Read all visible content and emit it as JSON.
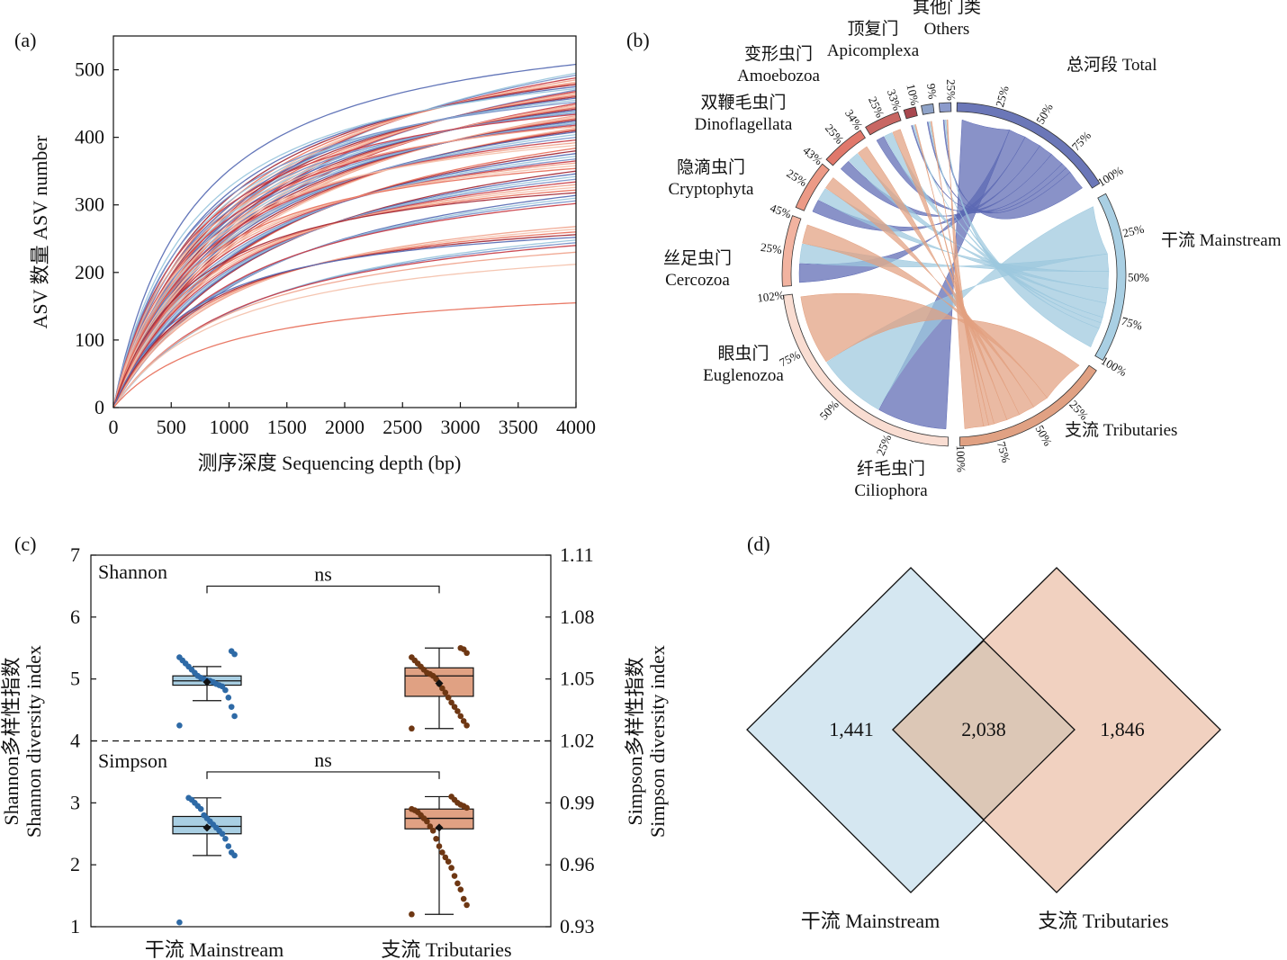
{
  "panel_labels": {
    "a": "(a)",
    "b": "(b)",
    "c": "(c)",
    "d": "(d)"
  },
  "chart_data": [
    {
      "id": "a",
      "type": "line",
      "xlabel": "测序深度 Sequencing depth (bp)",
      "ylabel": "ASV 数量 ASV number",
      "xlim": [
        0,
        4000
      ],
      "ylim": [
        0,
        550
      ],
      "xticks": [
        "0",
        "500",
        "1000",
        "1500",
        "2000",
        "2500",
        "3000",
        "3500",
        "4000"
      ],
      "yticks": [
        "0",
        "100",
        "200",
        "300",
        "400",
        "500"
      ],
      "curve_model": "y = A*x/(x+B)",
      "curve_final_values": [
        508,
        495,
        492,
        488,
        485,
        482,
        480,
        478,
        475,
        472,
        470,
        468,
        466,
        464,
        462,
        460,
        458,
        455,
        452,
        450,
        448,
        446,
        444,
        442,
        440,
        438,
        436,
        434,
        432,
        430,
        428,
        426,
        424,
        422,
        420,
        418,
        416,
        414,
        412,
        410,
        408,
        404,
        400,
        396,
        392,
        388,
        384,
        380,
        376,
        372,
        368,
        365,
        362,
        358,
        354,
        350,
        346,
        342,
        338,
        334,
        330,
        326,
        322,
        318,
        314,
        310,
        306,
        302,
        268,
        264,
        260,
        256,
        252,
        248,
        244,
        240,
        230,
        212,
        155
      ],
      "colors": [
        "#5b6fb5",
        "#c9404a",
        "#e8735f",
        "#9cc7dd",
        "#f0a58f",
        "#a52d3a",
        "#7b93c9",
        "#f4c3ae"
      ],
      "grid": false
    },
    {
      "id": "b",
      "type": "chord",
      "groups": [
        {
          "name_zh": "总河段",
          "name_en": "Total",
          "label": "总河段 Total",
          "color": "#6b77b8",
          "ticks": [
            "25%",
            "50%",
            "75%",
            "100%"
          ]
        },
        {
          "name_zh": "干流",
          "name_en": "Mainstream",
          "label": "干流 Mainstream",
          "color": "#a9cfe3",
          "ticks": [
            "25%",
            "50%",
            "75%",
            "100%"
          ]
        },
        {
          "name_zh": "支流",
          "name_en": "Tributaries",
          "label": "支流 Tributaries",
          "color": "#e0a183",
          "ticks": [
            "25%",
            "50%",
            "75%",
            "100%"
          ]
        },
        {
          "name_zh": "纤毛虫门",
          "name_en": "Ciliophora",
          "color": "#f9ddd2",
          "ticks": [
            "25%",
            "50%",
            "75%",
            "102%"
          ]
        },
        {
          "name_zh": "眼虫门",
          "name_en": "Euglenozoa",
          "color": "#f2b3a0",
          "ticks": [
            "25%",
            "45%"
          ]
        },
        {
          "name_zh": "丝足虫门",
          "name_en": "Cercozoa",
          "color": "#ec9a86",
          "ticks": [
            "25%",
            "43%"
          ]
        },
        {
          "name_zh": "隐滴虫门",
          "name_en": "Cryptophyta",
          "color": "#e0786b",
          "ticks": [
            "25%",
            "34%"
          ]
        },
        {
          "name_zh": "双鞭毛虫门",
          "name_en": "Dinoflagellata",
          "color": "#c86763",
          "ticks": [
            "25%",
            "33%"
          ]
        },
        {
          "name_zh": "变形虫门",
          "name_en": "Amoebozoa",
          "color": "#a8484f",
          "ticks": [
            "10%"
          ]
        },
        {
          "name_zh": "顶复门",
          "name_en": "Apicomplexa",
          "color": "#8fa3c8",
          "ticks": [
            "9%"
          ]
        },
        {
          "name_zh": "其他门类",
          "name_en": "Others",
          "color": "#8c9bcc",
          "ticks": [
            "25%"
          ]
        }
      ]
    },
    {
      "id": "c",
      "type": "box",
      "categories": [
        "干流 Mainstream",
        "支流 Tributaries"
      ],
      "ylabel_left": [
        "Shannon多样性指数",
        "Shannon diversity index"
      ],
      "ylabel_right": [
        "Simpson多样性指数",
        "Simpson diversity index"
      ],
      "ylim_left": [
        1,
        7
      ],
      "ylim_right": [
        0.93,
        1.11
      ],
      "yticks_left": [
        "1",
        "2",
        "3",
        "4",
        "5",
        "6",
        "7"
      ],
      "yticks_right": [
        "0.93",
        "0.96",
        "0.99",
        "1.02",
        "1.05",
        "1.08",
        "1.11"
      ],
      "divider_value_left": 4,
      "panels": [
        {
          "name": "Shannon",
          "significance": "ns",
          "boxes": [
            {
              "category": "干流 Mainstream",
              "color": "#a9cfe3",
              "dot_color": "#2e6aa6",
              "q1": 4.9,
              "median": 4.97,
              "q3": 5.05,
              "whisker_low": 4.65,
              "whisker_high": 5.2,
              "mean": 4.95,
              "points": [
                4.25,
                4.4,
                4.55,
                4.7,
                4.82,
                4.88,
                4.9,
                4.92,
                4.95,
                4.97,
                4.98,
                5.0,
                5.02,
                5.05,
                5.1,
                5.15,
                5.2,
                5.25,
                5.3,
                5.35,
                5.4,
                5.45
              ]
            },
            {
              "category": "支流 Tributaries",
              "color": "#e0a183",
              "dot_color": "#6e3713",
              "q1": 4.72,
              "median": 5.05,
              "q3": 5.18,
              "whisker_low": 4.2,
              "whisker_high": 5.5,
              "mean": 4.93,
              "points": [
                4.2,
                4.25,
                4.32,
                4.4,
                4.48,
                4.55,
                4.62,
                4.7,
                4.78,
                4.85,
                4.92,
                5.0,
                5.05,
                5.08,
                5.1,
                5.15,
                5.2,
                5.25,
                5.3,
                5.35,
                5.42,
                5.48,
                5.5
              ]
            }
          ]
        },
        {
          "name": "Simpson",
          "significance": "ns",
          "boxes": [
            {
              "category": "干流 Mainstream",
              "color": "#a9cfe3",
              "dot_color": "#2e6aa6",
              "q1": 2.5,
              "median": 2.62,
              "q3": 2.78,
              "whisker_low": 2.15,
              "whisker_high": 3.08,
              "mean": 2.6,
              "points": [
                1.07,
                2.15,
                2.2,
                2.3,
                2.42,
                2.5,
                2.55,
                2.6,
                2.65,
                2.7,
                2.75,
                2.8,
                2.9,
                2.95,
                3.0,
                3.05,
                3.08
              ]
            },
            {
              "category": "支流 Tributaries",
              "color": "#e0a183",
              "dot_color": "#6e3713",
              "q1": 2.58,
              "median": 2.75,
              "q3": 2.9,
              "whisker_low": 1.2,
              "whisker_high": 3.1,
              "mean": 2.6,
              "points": [
                1.2,
                1.35,
                1.45,
                1.6,
                1.7,
                1.82,
                1.95,
                2.05,
                2.12,
                2.2,
                2.3,
                2.42,
                2.55,
                2.62,
                2.7,
                2.75,
                2.8,
                2.85,
                2.88,
                2.9,
                2.92,
                2.95,
                2.97,
                3.0,
                3.05,
                3.1
              ]
            }
          ]
        }
      ]
    },
    {
      "id": "d",
      "type": "venn",
      "sets": [
        {
          "label": "干流 Mainstream",
          "count": "1,441",
          "color": "#d5e7f1"
        },
        {
          "label": "支流 Tributaries",
          "count": "1,846",
          "color": "#f1d1c0"
        }
      ],
      "intersection": {
        "count": "2,038",
        "color": "#dcc7b6"
      }
    }
  ]
}
